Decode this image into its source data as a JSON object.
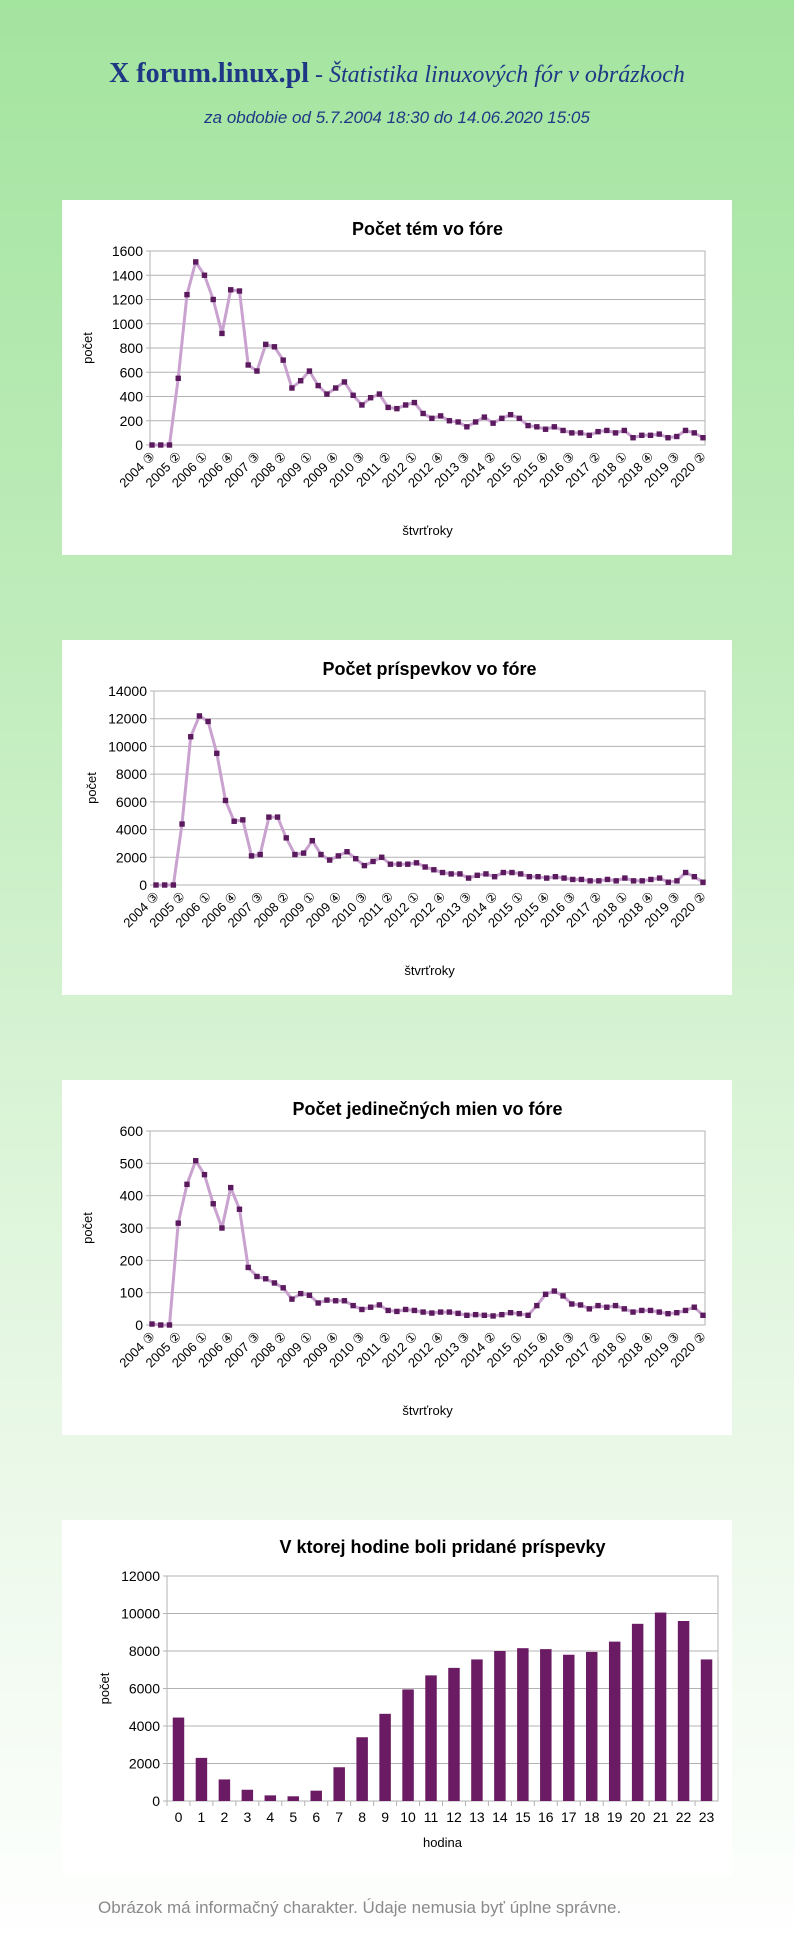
{
  "header": {
    "brand": "X forum.linux.pl",
    "subtitle": " - Štatistika linuxových fór v obrázkoch",
    "period": "za obdobie od 5.7.2004 18:30 do 14.06.2020 15:05"
  },
  "footer": "Obrázok má informačný charakter. Údaje nemusia byť úplne správne.",
  "colors": {
    "line": "#c9a2cf",
    "marker": "#5b1a5e",
    "bar": "#6a1b63",
    "grid": "#b3b3b3"
  },
  "chart_data": [
    {
      "type": "line",
      "title": "Počet tém vo fóre",
      "xlabel": "štvrťroky",
      "ylabel": "počet",
      "ylim": [
        0,
        1600
      ],
      "yticks": [
        "0",
        "200",
        "400",
        "600",
        "800",
        "1000",
        "1200",
        "1400",
        "1600"
      ],
      "grid": true,
      "x": [
        "2004 ③",
        "2004 ④",
        "2005 ①",
        "2005 ②",
        "2005 ③",
        "2005 ④",
        "2006 ①",
        "2006 ②",
        "2006 ③",
        "2006 ④",
        "2007 ①",
        "2007 ②",
        "2007 ③",
        "2007 ④",
        "2008 ①",
        "2008 ②",
        "2008 ③",
        "2008 ④",
        "2009 ①",
        "2009 ②",
        "2009 ③",
        "2009 ④",
        "2010 ①",
        "2010 ②",
        "2010 ③",
        "2010 ④",
        "2011 ①",
        "2011 ②",
        "2011 ③",
        "2011 ④",
        "2012 ①",
        "2012 ②",
        "2012 ③",
        "2012 ④",
        "2013 ①",
        "2013 ②",
        "2013 ③",
        "2013 ④",
        "2014 ①",
        "2014 ②",
        "2014 ③",
        "2014 ④",
        "2015 ①",
        "2015 ②",
        "2015 ③",
        "2015 ④",
        "2016 ①",
        "2016 ②",
        "2016 ③",
        "2016 ④",
        "2017 ①",
        "2017 ②",
        "2017 ③",
        "2017 ④",
        "2018 ①",
        "2018 ②",
        "2018 ③",
        "2018 ④",
        "2019 ①",
        "2019 ②",
        "2019 ③",
        "2019 ④",
        "2020 ①",
        "2020 ②"
      ],
      "xtick_labels": [
        "2004 ③",
        "2005 ②",
        "2006 ①",
        "2006 ④",
        "2007 ③",
        "2008 ②",
        "2009 ①",
        "2009 ④",
        "2010 ③",
        "2011 ②",
        "2012 ①",
        "2012 ④",
        "2013 ③",
        "2014 ②",
        "2015 ①",
        "2015 ④",
        "2016 ③",
        "2017 ②",
        "2018 ①",
        "2018 ④",
        "2019 ③",
        "2020 ②"
      ],
      "values": [
        0,
        0,
        0,
        550,
        1240,
        1510,
        1400,
        1200,
        920,
        1280,
        1270,
        660,
        610,
        830,
        810,
        700,
        470,
        530,
        610,
        490,
        420,
        470,
        520,
        410,
        330,
        390,
        420,
        310,
        300,
        330,
        350,
        260,
        220,
        240,
        200,
        190,
        150,
        190,
        230,
        180,
        220,
        250,
        220,
        160,
        150,
        130,
        150,
        120,
        100,
        100,
        80,
        110,
        120,
        100,
        120,
        60,
        80,
        80,
        90,
        60,
        70,
        120,
        100,
        60
      ]
    },
    {
      "type": "line",
      "title": "Počet príspevkov vo fóre",
      "xlabel": "štvrťroky",
      "ylabel": "počet",
      "ylim": [
        0,
        14000
      ],
      "yticks": [
        "0",
        "2000",
        "4000",
        "6000",
        "8000",
        "10000",
        "12000",
        "14000"
      ],
      "grid": true,
      "x": [
        "2004 ③",
        "2004 ④",
        "2005 ①",
        "2005 ②",
        "2005 ③",
        "2005 ④",
        "2006 ①",
        "2006 ②",
        "2006 ③",
        "2006 ④",
        "2007 ①",
        "2007 ②",
        "2007 ③",
        "2007 ④",
        "2008 ①",
        "2008 ②",
        "2008 ③",
        "2008 ④",
        "2009 ①",
        "2009 ②",
        "2009 ③",
        "2009 ④",
        "2010 ①",
        "2010 ②",
        "2010 ③",
        "2010 ④",
        "2011 ①",
        "2011 ②",
        "2011 ③",
        "2011 ④",
        "2012 ①",
        "2012 ②",
        "2012 ③",
        "2012 ④",
        "2013 ①",
        "2013 ②",
        "2013 ③",
        "2013 ④",
        "2014 ①",
        "2014 ②",
        "2014 ③",
        "2014 ④",
        "2015 ①",
        "2015 ②",
        "2015 ③",
        "2015 ④",
        "2016 ①",
        "2016 ②",
        "2016 ③",
        "2016 ④",
        "2017 ①",
        "2017 ②",
        "2017 ③",
        "2017 ④",
        "2018 ①",
        "2018 ②",
        "2018 ③",
        "2018 ④",
        "2019 ①",
        "2019 ②",
        "2019 ③",
        "2019 ④",
        "2020 ①",
        "2020 ②"
      ],
      "xtick_labels": [
        "2004 ③",
        "2005 ②",
        "2006 ①",
        "2006 ④",
        "2007 ③",
        "2008 ②",
        "2009 ①",
        "2009 ④",
        "2010 ③",
        "2011 ②",
        "2012 ①",
        "2012 ④",
        "2013 ③",
        "2014 ②",
        "2015 ①",
        "2015 ④",
        "2016 ③",
        "2017 ②",
        "2018 ①",
        "2018 ④",
        "2019 ③",
        "2020 ②"
      ],
      "values": [
        0,
        0,
        0,
        4400,
        10700,
        12200,
        11800,
        9500,
        6100,
        4600,
        4700,
        2100,
        2200,
        4900,
        4900,
        3400,
        2200,
        2300,
        3200,
        2200,
        1800,
        2100,
        2400,
        1900,
        1400,
        1700,
        2000,
        1500,
        1500,
        1500,
        1600,
        1300,
        1100,
        900,
        800,
        800,
        500,
        700,
        800,
        600,
        900,
        900,
        800,
        600,
        600,
        500,
        600,
        500,
        400,
        400,
        300,
        300,
        400,
        300,
        500,
        300,
        300,
        400,
        500,
        200,
        300,
        900,
        600,
        200
      ]
    },
    {
      "type": "line",
      "title": "Počet jedinečných mien vo fóre",
      "xlabel": "štvrťroky",
      "ylabel": "počet",
      "ylim": [
        0,
        600
      ],
      "yticks": [
        "0",
        "100",
        "200",
        "300",
        "400",
        "500",
        "600"
      ],
      "grid": true,
      "x": [
        "2004 ③",
        "2004 ④",
        "2005 ①",
        "2005 ②",
        "2005 ③",
        "2005 ④",
        "2006 ①",
        "2006 ②",
        "2006 ③",
        "2006 ④",
        "2007 ①",
        "2007 ②",
        "2007 ③",
        "2007 ④",
        "2008 ①",
        "2008 ②",
        "2008 ③",
        "2008 ④",
        "2009 ①",
        "2009 ②",
        "2009 ③",
        "2009 ④",
        "2010 ①",
        "2010 ②",
        "2010 ③",
        "2010 ④",
        "2011 ①",
        "2011 ②",
        "2011 ③",
        "2011 ④",
        "2012 ①",
        "2012 ②",
        "2012 ③",
        "2012 ④",
        "2013 ①",
        "2013 ②",
        "2013 ③",
        "2013 ④",
        "2014 ①",
        "2014 ②",
        "2014 ③",
        "2014 ④",
        "2015 ①",
        "2015 ②",
        "2015 ③",
        "2015 ④",
        "2016 ①",
        "2016 ②",
        "2016 ③",
        "2016 ④",
        "2017 ①",
        "2017 ②",
        "2017 ③",
        "2017 ④",
        "2018 ①",
        "2018 ②",
        "2018 ③",
        "2018 ④",
        "2019 ①",
        "2019 ②",
        "2019 ③",
        "2019 ④",
        "2020 ①",
        "2020 ②"
      ],
      "xtick_labels": [
        "2004 ③",
        "2005 ②",
        "2006 ①",
        "2006 ④",
        "2007 ③",
        "2008 ②",
        "2009 ①",
        "2009 ④",
        "2010 ③",
        "2011 ②",
        "2012 ①",
        "2012 ④",
        "2013 ③",
        "2014 ②",
        "2015 ①",
        "2015 ④",
        "2016 ③",
        "2017 ②",
        "2018 ①",
        "2018 ④",
        "2019 ③",
        "2020 ②"
      ],
      "values": [
        3,
        0,
        0,
        315,
        435,
        508,
        465,
        375,
        300,
        425,
        358,
        178,
        150,
        143,
        130,
        115,
        80,
        97,
        92,
        68,
        77,
        75,
        75,
        60,
        48,
        55,
        62,
        45,
        42,
        48,
        45,
        40,
        37,
        40,
        40,
        36,
        30,
        32,
        30,
        28,
        32,
        38,
        35,
        30,
        60,
        95,
        105,
        90,
        65,
        62,
        50,
        60,
        55,
        60,
        50,
        40,
        45,
        45,
        40,
        35,
        38,
        45,
        55,
        30
      ]
    },
    {
      "type": "bar",
      "title": "V ktorej hodine boli pridané príspevky",
      "xlabel": "hodina",
      "ylabel": "počet",
      "ylim": [
        0,
        12000
      ],
      "yticks": [
        "0",
        "2000",
        "4000",
        "6000",
        "8000",
        "10000",
        "12000"
      ],
      "grid": true,
      "categories": [
        "0",
        "1",
        "2",
        "3",
        "4",
        "5",
        "6",
        "7",
        "8",
        "9",
        "10",
        "11",
        "12",
        "13",
        "14",
        "15",
        "16",
        "17",
        "18",
        "19",
        "20",
        "21",
        "22",
        "23"
      ],
      "values": [
        4450,
        2300,
        1150,
        600,
        300,
        250,
        550,
        1800,
        3400,
        4650,
        5950,
        6700,
        7100,
        7550,
        8000,
        8150,
        8100,
        7800,
        7950,
        8500,
        9450,
        10050,
        9600,
        7550
      ]
    }
  ]
}
